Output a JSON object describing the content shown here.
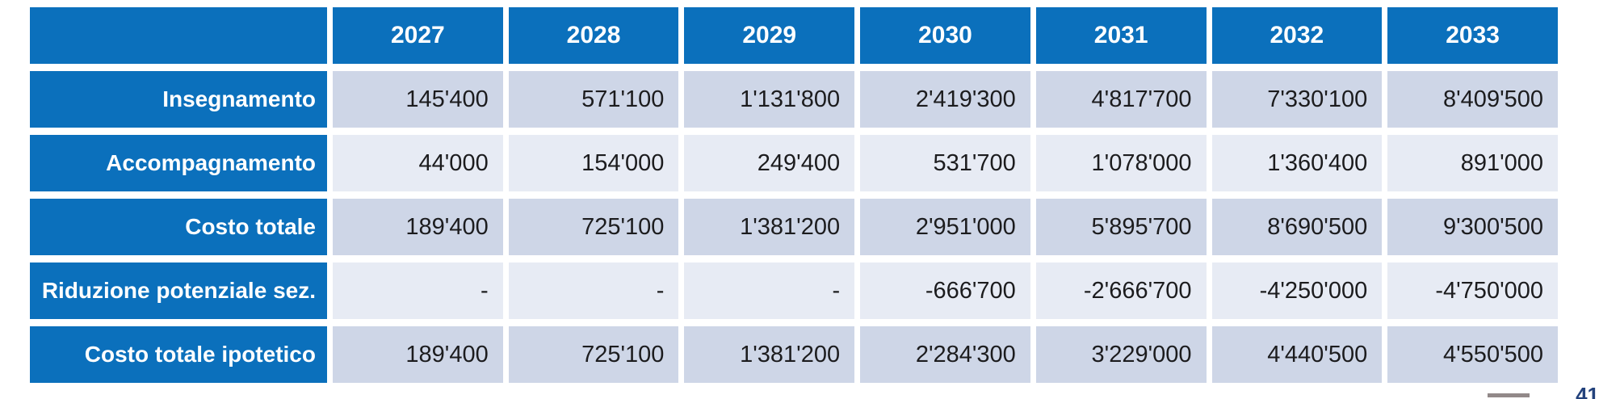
{
  "chart_data": {
    "type": "table",
    "title": "",
    "corner_label": "",
    "categories": [
      "2027",
      "2028",
      "2029",
      "2030",
      "2031",
      "2032",
      "2033"
    ],
    "series": [
      {
        "name": "Insegnamento",
        "values": [
          145400,
          571100,
          1131800,
          2419300,
          4817700,
          7330100,
          8409500
        ],
        "display": [
          "145'400",
          "571'100",
          "1'131'800",
          "2'419'300",
          "4'817'700",
          "7'330'100",
          "8'409'500"
        ]
      },
      {
        "name": "Accompagnamento",
        "values": [
          44000,
          154000,
          249400,
          531700,
          1078000,
          1360400,
          891000
        ],
        "display": [
          "44'000",
          "154'000",
          "249'400",
          "531'700",
          "1'078'000",
          "1'360'400",
          "891'000"
        ]
      },
      {
        "name": "Costo totale",
        "values": [
          189400,
          725100,
          1381200,
          2951000,
          5895700,
          8690500,
          9300500
        ],
        "display": [
          "189'400",
          "725'100",
          "1'381'200",
          "2'951'000",
          "5'895'700",
          "8'690'500",
          "9'300'500"
        ]
      },
      {
        "name": "Riduzione potenziale sez.",
        "values": [
          null,
          null,
          null,
          -666700,
          -2666700,
          -4250000,
          -4750000
        ],
        "display": [
          "-",
          "-",
          "-",
          "-666'700",
          "-2'666'700",
          "-4'250'000",
          "-4'750'000"
        ]
      },
      {
        "name": "Costo totale ipotetico",
        "values": [
          189400,
          725100,
          1381200,
          2284300,
          3229000,
          4440500,
          4550500
        ],
        "display": [
          "189'400",
          "725'100",
          "1'381'200",
          "2'284'300",
          "3'229'000",
          "4'440'500",
          "4'550'500"
        ]
      }
    ],
    "layout": {
      "header_background": "#0b70bc",
      "row_background_dark": "#ced6e7",
      "row_background_light": "#e7ebf4",
      "header_text_color": "#ffffff",
      "value_text_color": "#1c1c1e",
      "row_shading_order": [
        "dark",
        "light",
        "dark",
        "light",
        "dark"
      ]
    }
  },
  "footer": {
    "page_fragment": "41"
  }
}
